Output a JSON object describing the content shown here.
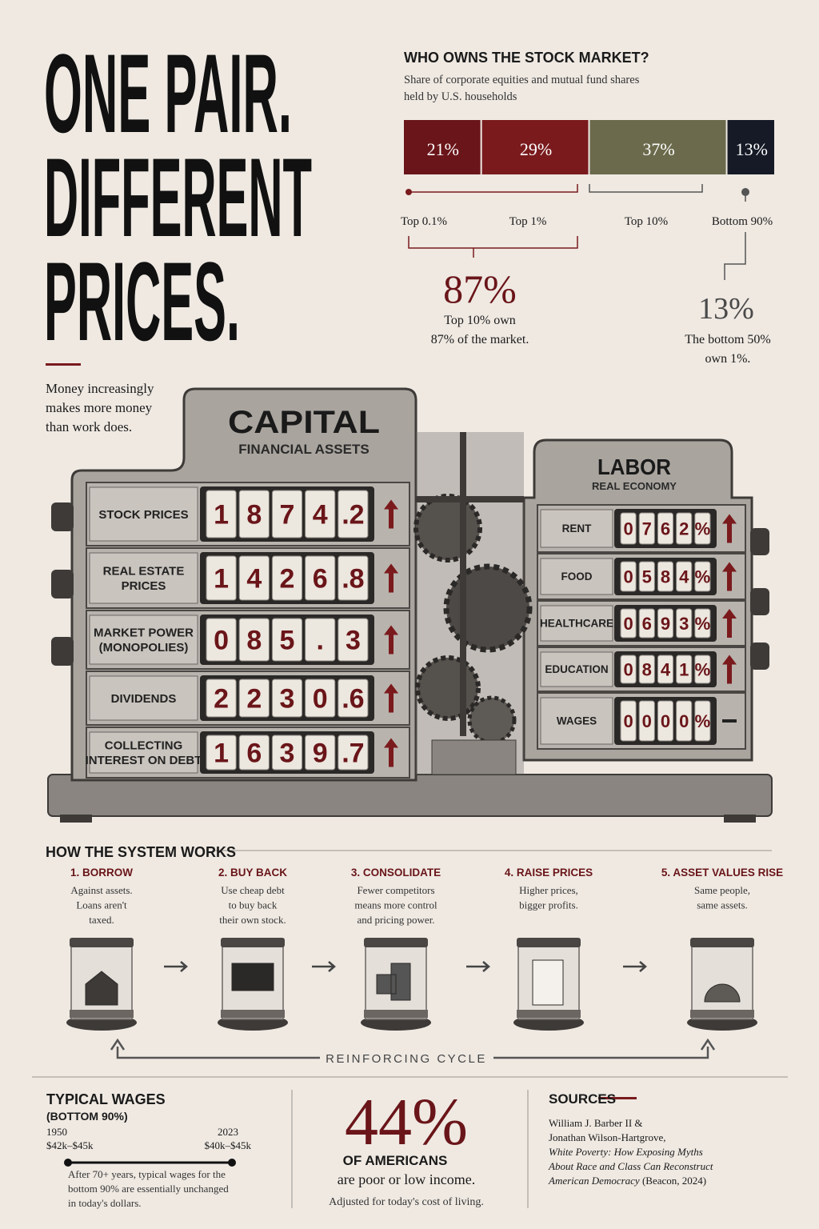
{
  "headline": {
    "lines": [
      "ONE PAIR.",
      "DIFFERENT",
      "PRICES."
    ],
    "tagline": [
      "Money increasingly",
      "makes more money",
      "than work does."
    ]
  },
  "chart_data": {
    "type": "stacked-bar",
    "title": "WHO OWNS THE STOCK MARKET?",
    "subtitle": [
      "Share of corporate equities and mutual fund shares",
      "held by U.S. households"
    ],
    "series": [
      {
        "name": "Top 0.1%",
        "color": "#6a1519",
        "values": [
          21
        ],
        "value_labels": [
          "21%"
        ]
      },
      {
        "name": "Top 1%",
        "color": "#7a1a1d",
        "values": [
          29
        ],
        "value_labels": [
          "29%"
        ]
      },
      {
        "name": "Top 10%",
        "color": "#6b6a4c",
        "values": [
          37
        ],
        "value_labels": [
          "37%"
        ]
      },
      {
        "name": "Bottom 90%",
        "color": "#151a26",
        "values": [
          13
        ],
        "value_labels": [
          "13%"
        ]
      }
    ],
    "annotations": [
      {
        "value": "87%",
        "text": [
          "Top 10% own",
          "87% of the market."
        ]
      },
      {
        "value": "13%",
        "text": [
          "The bottom 50%",
          "own 1%."
        ]
      }
    ]
  },
  "machine": {
    "capital": {
      "title": "CAPITAL",
      "subtitle": "FINANCIAL ASSETS",
      "rows": [
        {
          "label": [
            "STOCK PRICES"
          ],
          "drums": [
            "1",
            "8",
            "7",
            "4",
            ".2"
          ],
          "trend": "up"
        },
        {
          "label": [
            "REAL ESTATE",
            "PRICES"
          ],
          "drums": [
            "1",
            "4",
            "2",
            "6",
            ".8"
          ],
          "trend": "up"
        },
        {
          "label": [
            "MARKET POWER",
            "(MONOPOLIES)"
          ],
          "drums": [
            "0",
            "8",
            "5",
            ".",
            "3"
          ],
          "trend": "up"
        },
        {
          "label": [
            "DIVIDENDS"
          ],
          "drums": [
            "2",
            "2",
            "3",
            "0",
            ".6"
          ],
          "trend": "up"
        },
        {
          "label": [
            "COLLECTING",
            "INTEREST ON DEBT"
          ],
          "drums": [
            "1",
            "6",
            "3",
            "9",
            ".7"
          ],
          "trend": "up"
        }
      ]
    },
    "labor": {
      "title": "LABOR",
      "subtitle": "REAL ECONOMY",
      "rows": [
        {
          "label": [
            "RENT"
          ],
          "drums": [
            "0",
            "7",
            "6",
            "2",
            "%"
          ],
          "trend": "up"
        },
        {
          "label": [
            "FOOD"
          ],
          "drums": [
            "0",
            "5",
            "8",
            "4",
            "%"
          ],
          "trend": "up"
        },
        {
          "label": [
            "HEALTHCARE"
          ],
          "drums": [
            "0",
            "6",
            "9",
            "3",
            "%"
          ],
          "trend": "up"
        },
        {
          "label": [
            "EDUCATION"
          ],
          "drums": [
            "0",
            "8",
            "4",
            "1",
            "%"
          ],
          "trend": "up"
        },
        {
          "label": [
            "WAGES"
          ],
          "drums": [
            "0",
            "0",
            "0",
            "0",
            "%"
          ],
          "trend": "flat"
        }
      ]
    }
  },
  "system": {
    "title": "HOW THE SYSTEM WORKS",
    "cycle": "REINFORCING CYCLE",
    "steps": [
      {
        "title": "1. BORROW",
        "text": [
          "Against assets.",
          "Loans aren't",
          "taxed."
        ]
      },
      {
        "title": "2. BUY BACK",
        "text": [
          "Use cheap debt",
          "to buy back",
          "their own stock."
        ]
      },
      {
        "title": "3. CONSOLIDATE",
        "text": [
          "Fewer competitors",
          "means more control",
          "and pricing power."
        ]
      },
      {
        "title": "4. RAISE PRICES",
        "text": [
          "Higher prices,",
          "bigger profits."
        ]
      },
      {
        "title": "5. ASSET VALUES RISE",
        "text": [
          "Same people,",
          "same assets."
        ]
      }
    ]
  },
  "wages": {
    "title": "TYPICAL WAGES",
    "subtitle": "(BOTTOM 90%)",
    "start": {
      "year": "1950",
      "range": "$42k–$45k"
    },
    "end": {
      "year": "2023",
      "range": "$40k–$45k"
    },
    "note": [
      "After 70+ years, typical wages for the",
      "bottom 90% are essentially unchanged",
      "in today's dollars."
    ]
  },
  "stat": {
    "value": "44%",
    "line1": "OF AMERICANS",
    "line2": "are poor or low income.",
    "note": "Adjusted for today's cost of living."
  },
  "sources": {
    "title": "SOURCES",
    "lines": [
      "William J. Barber II &",
      "Jonathan Wilson-Hartgrove,"
    ],
    "italic": [
      "White Poverty: How Exposing Myths",
      "About Race and Class Can Reconstruct",
      "American Democracy"
    ],
    "publisher": " (Beacon, 2024)"
  }
}
